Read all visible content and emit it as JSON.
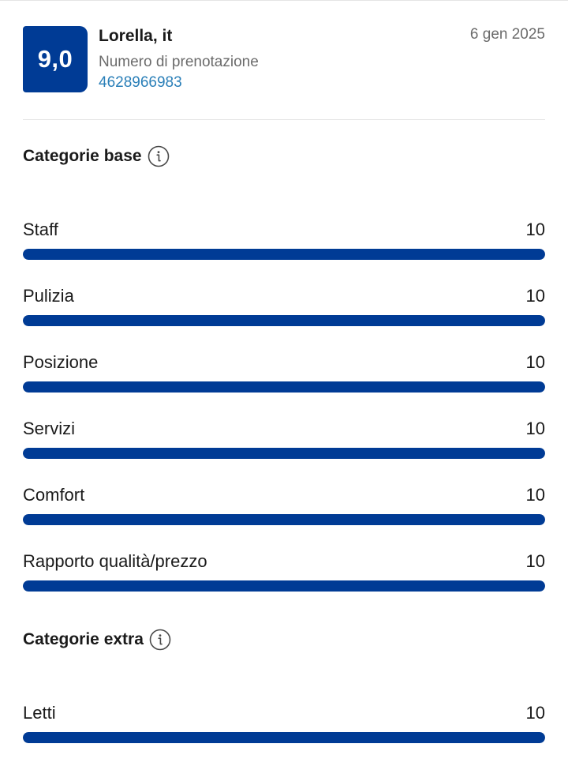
{
  "review": {
    "score": "9,0",
    "reviewer": "Lorella, it",
    "booking_label": "Numero di prenotazione",
    "booking_number": "4628966983",
    "date": "6 gen 2025"
  },
  "base_section": {
    "title": "Categorie base",
    "icon": "info-icon",
    "items": [
      {
        "label": "Staff",
        "value": "10",
        "fraction": 1.0
      },
      {
        "label": "Pulizia",
        "value": "10",
        "fraction": 1.0
      },
      {
        "label": "Posizione",
        "value": "10",
        "fraction": 1.0
      },
      {
        "label": "Servizi",
        "value": "10",
        "fraction": 1.0
      },
      {
        "label": "Comfort",
        "value": "10",
        "fraction": 1.0
      },
      {
        "label": "Rapporto qualità/prezzo",
        "value": "10",
        "fraction": 1.0
      }
    ]
  },
  "extra_section": {
    "title": "Categorie extra",
    "icon": "info-icon",
    "items": [
      {
        "label": "Letti",
        "value": "10",
        "fraction": 1.0
      }
    ]
  },
  "colors": {
    "accent": "#003b95",
    "link": "#2a7fb8"
  }
}
